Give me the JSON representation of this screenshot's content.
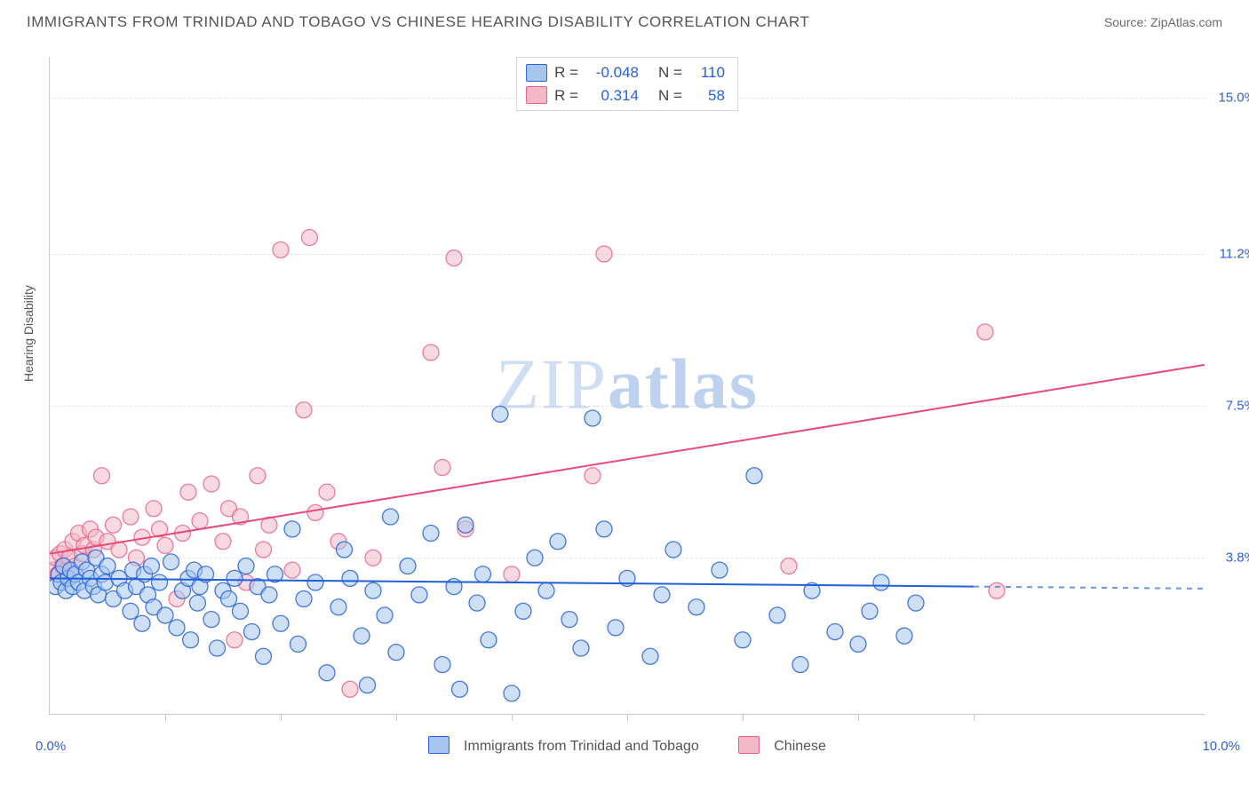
{
  "header": {
    "title": "IMMIGRANTS FROM TRINIDAD AND TOBAGO VS CHINESE HEARING DISABILITY CORRELATION CHART",
    "source": "Source: ZipAtlas.com"
  },
  "axes": {
    "y_label": "Hearing Disability",
    "x_min_label": "0.0%",
    "x_max_label": "10.0%",
    "x_min": 0,
    "x_max": 10,
    "y_min": 0,
    "y_max": 16,
    "y_gridlines": [
      {
        "value": 3.8,
        "label": "3.8%"
      },
      {
        "value": 7.5,
        "label": "7.5%"
      },
      {
        "value": 11.2,
        "label": "11.2%"
      },
      {
        "value": 15.0,
        "label": "15.0%"
      }
    ],
    "x_ticks": [
      1,
      2,
      3,
      4,
      5,
      6,
      7,
      8
    ]
  },
  "series": {
    "blue": {
      "label": "Immigrants from Trinidad and Tobago",
      "fill": "#a6c6ee",
      "fill_opacity": 0.55,
      "stroke": "#2a62d9",
      "stroke_opacity": 0.85,
      "line_stroke": "#1f5fd8",
      "line_dash_stroke": "#6a96e0",
      "R": "-0.048",
      "N": "110",
      "trend": {
        "y_start": 3.3,
        "y_at_8": 3.1,
        "y_end": 3.05,
        "solid_until_x": 8.0
      },
      "points": [
        [
          0.05,
          3.1
        ],
        [
          0.08,
          3.4
        ],
        [
          0.1,
          3.2
        ],
        [
          0.12,
          3.6
        ],
        [
          0.14,
          3.0
        ],
        [
          0.16,
          3.3
        ],
        [
          0.18,
          3.5
        ],
        [
          0.2,
          3.1
        ],
        [
          0.22,
          3.4
        ],
        [
          0.25,
          3.2
        ],
        [
          0.28,
          3.7
        ],
        [
          0.3,
          3.0
        ],
        [
          0.32,
          3.5
        ],
        [
          0.35,
          3.3
        ],
        [
          0.38,
          3.1
        ],
        [
          0.4,
          3.8
        ],
        [
          0.42,
          2.9
        ],
        [
          0.45,
          3.4
        ],
        [
          0.48,
          3.2
        ],
        [
          0.5,
          3.6
        ],
        [
          0.55,
          2.8
        ],
        [
          0.6,
          3.3
        ],
        [
          0.65,
          3.0
        ],
        [
          0.7,
          2.5
        ],
        [
          0.72,
          3.5
        ],
        [
          0.75,
          3.1
        ],
        [
          0.8,
          2.2
        ],
        [
          0.82,
          3.4
        ],
        [
          0.85,
          2.9
        ],
        [
          0.88,
          3.6
        ],
        [
          0.9,
          2.6
        ],
        [
          0.95,
          3.2
        ],
        [
          1.0,
          2.4
        ],
        [
          1.05,
          3.7
        ],
        [
          1.1,
          2.1
        ],
        [
          1.15,
          3.0
        ],
        [
          1.2,
          3.3
        ],
        [
          1.22,
          1.8
        ],
        [
          1.25,
          3.5
        ],
        [
          1.28,
          2.7
        ],
        [
          1.3,
          3.1
        ],
        [
          1.35,
          3.4
        ],
        [
          1.4,
          2.3
        ],
        [
          1.45,
          1.6
        ],
        [
          1.5,
          3.0
        ],
        [
          1.55,
          2.8
        ],
        [
          1.6,
          3.3
        ],
        [
          1.65,
          2.5
        ],
        [
          1.7,
          3.6
        ],
        [
          1.75,
          2.0
        ],
        [
          1.8,
          3.1
        ],
        [
          1.85,
          1.4
        ],
        [
          1.9,
          2.9
        ],
        [
          1.95,
          3.4
        ],
        [
          2.0,
          2.2
        ],
        [
          2.1,
          4.5
        ],
        [
          2.15,
          1.7
        ],
        [
          2.2,
          2.8
        ],
        [
          2.3,
          3.2
        ],
        [
          2.4,
          1.0
        ],
        [
          2.5,
          2.6
        ],
        [
          2.55,
          4.0
        ],
        [
          2.6,
          3.3
        ],
        [
          2.7,
          1.9
        ],
        [
          2.75,
          0.7
        ],
        [
          2.8,
          3.0
        ],
        [
          2.9,
          2.4
        ],
        [
          2.95,
          4.8
        ],
        [
          3.0,
          1.5
        ],
        [
          3.1,
          3.6
        ],
        [
          3.2,
          2.9
        ],
        [
          3.3,
          4.4
        ],
        [
          3.4,
          1.2
        ],
        [
          3.5,
          3.1
        ],
        [
          3.55,
          0.6
        ],
        [
          3.6,
          4.6
        ],
        [
          3.7,
          2.7
        ],
        [
          3.75,
          3.4
        ],
        [
          3.8,
          1.8
        ],
        [
          3.9,
          7.3
        ],
        [
          4.0,
          0.5
        ],
        [
          4.1,
          2.5
        ],
        [
          4.2,
          3.8
        ],
        [
          4.3,
          3.0
        ],
        [
          4.4,
          4.2
        ],
        [
          4.5,
          2.3
        ],
        [
          4.6,
          1.6
        ],
        [
          4.7,
          7.2
        ],
        [
          4.8,
          4.5
        ],
        [
          4.9,
          2.1
        ],
        [
          5.0,
          3.3
        ],
        [
          5.2,
          1.4
        ],
        [
          5.3,
          2.9
        ],
        [
          5.4,
          4.0
        ],
        [
          5.6,
          2.6
        ],
        [
          5.8,
          3.5
        ],
        [
          6.0,
          1.8
        ],
        [
          6.1,
          5.8
        ],
        [
          6.3,
          2.4
        ],
        [
          6.5,
          1.2
        ],
        [
          6.6,
          3.0
        ],
        [
          6.8,
          2.0
        ],
        [
          7.0,
          1.7
        ],
        [
          7.1,
          2.5
        ],
        [
          7.2,
          3.2
        ],
        [
          7.4,
          1.9
        ],
        [
          7.5,
          2.7
        ]
      ]
    },
    "pink": {
      "label": "Chinese",
      "fill": "#f4b9c8",
      "fill_opacity": 0.55,
      "stroke": "#e85f88",
      "stroke_opacity": 0.8,
      "line_stroke": "#e64a7d",
      "R": "0.314",
      "N": "58",
      "trend": {
        "y_start": 3.9,
        "y_end": 8.5
      },
      "points": [
        [
          0.03,
          3.5
        ],
        [
          0.05,
          3.8
        ],
        [
          0.07,
          3.4
        ],
        [
          0.09,
          3.9
        ],
        [
          0.11,
          3.6
        ],
        [
          0.13,
          4.0
        ],
        [
          0.15,
          3.5
        ],
        [
          0.17,
          3.8
        ],
        [
          0.2,
          4.2
        ],
        [
          0.22,
          3.6
        ],
        [
          0.25,
          4.4
        ],
        [
          0.28,
          3.9
        ],
        [
          0.3,
          4.1
        ],
        [
          0.35,
          4.5
        ],
        [
          0.38,
          4.0
        ],
        [
          0.4,
          4.3
        ],
        [
          0.45,
          5.8
        ],
        [
          0.5,
          4.2
        ],
        [
          0.55,
          4.6
        ],
        [
          0.6,
          4.0
        ],
        [
          0.7,
          4.8
        ],
        [
          0.75,
          3.8
        ],
        [
          0.8,
          4.3
        ],
        [
          0.9,
          5.0
        ],
        [
          0.95,
          4.5
        ],
        [
          1.0,
          4.1
        ],
        [
          1.1,
          2.8
        ],
        [
          1.15,
          4.4
        ],
        [
          1.2,
          5.4
        ],
        [
          1.3,
          4.7
        ],
        [
          1.4,
          5.6
        ],
        [
          1.5,
          4.2
        ],
        [
          1.55,
          5.0
        ],
        [
          1.6,
          1.8
        ],
        [
          1.65,
          4.8
        ],
        [
          1.7,
          3.2
        ],
        [
          1.8,
          5.8
        ],
        [
          1.85,
          4.0
        ],
        [
          1.9,
          4.6
        ],
        [
          2.0,
          11.3
        ],
        [
          2.1,
          3.5
        ],
        [
          2.2,
          7.4
        ],
        [
          2.25,
          11.6
        ],
        [
          2.3,
          4.9
        ],
        [
          2.4,
          5.4
        ],
        [
          2.5,
          4.2
        ],
        [
          2.6,
          0.6
        ],
        [
          2.8,
          3.8
        ],
        [
          3.3,
          8.8
        ],
        [
          3.4,
          6.0
        ],
        [
          3.5,
          11.1
        ],
        [
          3.6,
          4.5
        ],
        [
          4.0,
          3.4
        ],
        [
          4.7,
          5.8
        ],
        [
          4.8,
          11.2
        ],
        [
          6.4,
          3.6
        ],
        [
          8.1,
          9.3
        ],
        [
          8.2,
          3.0
        ]
      ]
    }
  },
  "style": {
    "marker_radius": 9,
    "marker_stroke_width": 1.3,
    "trend_line_width": 2,
    "grid_dash": "4,4",
    "background_color": "#ffffff",
    "border_color": "#c9c9c9",
    "tick_color": "#2a62d9",
    "text_color": "#555555"
  },
  "watermark": {
    "thin": "ZIP",
    "bold": "atlas"
  }
}
